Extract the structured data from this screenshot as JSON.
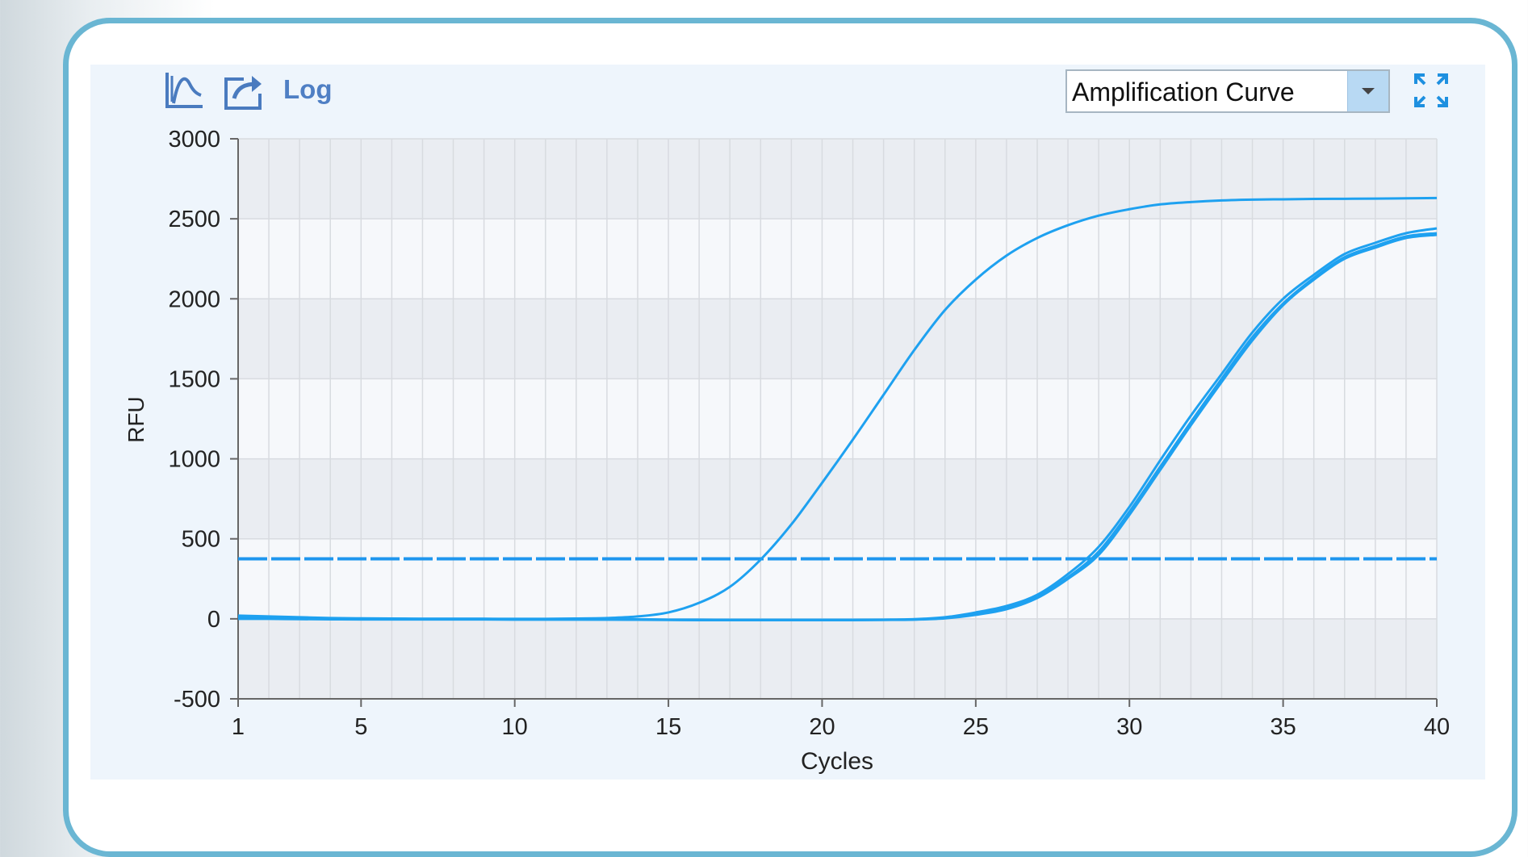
{
  "toolbar": {
    "log_label": "Log",
    "icons": [
      "curve-icon",
      "export-icon",
      "fullscreen-icon"
    ]
  },
  "dropdown": {
    "selected": "Amplification Curve"
  },
  "colors": {
    "curve": "#1ea1f0",
    "threshold": "#1e96ee",
    "axis": "#666666",
    "accent": "#6ab6d3"
  },
  "chart_data": {
    "type": "line",
    "xlabel": "Cycles",
    "ylabel": "RFU",
    "xlim": [
      1,
      40
    ],
    "ylim": [
      -500,
      3000
    ],
    "xticks": [
      1,
      5,
      10,
      15,
      20,
      25,
      30,
      35,
      40
    ],
    "yticks": [
      -500,
      0,
      500,
      1000,
      1500,
      2000,
      2500,
      3000
    ],
    "grid": true,
    "threshold": 375,
    "series": [
      {
        "x": [
          1,
          2,
          3,
          4,
          5,
          6,
          7,
          8,
          9,
          10,
          11,
          12,
          13,
          14,
          15,
          16,
          17,
          18,
          19,
          20,
          21,
          22,
          23,
          24,
          25,
          26,
          27,
          28,
          29,
          30,
          31,
          32,
          33,
          34,
          35,
          36,
          37,
          38,
          39,
          40
        ],
        "values": [
          15,
          10,
          5,
          2,
          0,
          0,
          0,
          0,
          0,
          0,
          0,
          2,
          5,
          15,
          40,
          100,
          200,
          370,
          590,
          850,
          1120,
          1400,
          1680,
          1930,
          2120,
          2270,
          2380,
          2460,
          2520,
          2560,
          2590,
          2605,
          2615,
          2620,
          2622,
          2624,
          2625,
          2626,
          2628,
          2630
        ]
      },
      {
        "x": [
          1,
          2,
          3,
          4,
          5,
          6,
          7,
          8,
          9,
          10,
          11,
          12,
          13,
          14,
          15,
          16,
          17,
          18,
          19,
          20,
          21,
          22,
          23,
          24,
          25,
          26,
          27,
          28,
          29,
          30,
          31,
          32,
          33,
          34,
          35,
          36,
          37,
          38,
          39,
          40
        ],
        "values": [
          10,
          8,
          5,
          0,
          0,
          0,
          0,
          0,
          0,
          -2,
          -2,
          -3,
          -3,
          -3,
          -5,
          -5,
          -6,
          -6,
          -6,
          -6,
          -6,
          -5,
          -2,
          10,
          40,
          80,
          150,
          280,
          450,
          700,
          990,
          1270,
          1530,
          1790,
          2000,
          2150,
          2280,
          2350,
          2410,
          2440
        ]
      },
      {
        "x": [
          1,
          2,
          3,
          4,
          5,
          6,
          7,
          8,
          9,
          10,
          11,
          12,
          13,
          14,
          15,
          16,
          17,
          18,
          19,
          20,
          21,
          22,
          23,
          24,
          25,
          26,
          27,
          28,
          29,
          30,
          31,
          32,
          33,
          34,
          35,
          36,
          37,
          38,
          39,
          40
        ],
        "values": [
          20,
          15,
          10,
          5,
          3,
          2,
          0,
          0,
          0,
          -2,
          -3,
          -3,
          -4,
          -5,
          -6,
          -6,
          -7,
          -7,
          -7,
          -7,
          -7,
          -6,
          -4,
          5,
          30,
          70,
          140,
          260,
          420,
          670,
          950,
          1230,
          1500,
          1760,
          1970,
          2130,
          2260,
          2330,
          2390,
          2410
        ]
      },
      {
        "x": [
          1,
          2,
          3,
          4,
          5,
          6,
          7,
          8,
          9,
          10,
          11,
          12,
          13,
          14,
          15,
          16,
          17,
          18,
          19,
          20,
          21,
          22,
          23,
          24,
          25,
          26,
          27,
          28,
          29,
          30,
          31,
          32,
          33,
          34,
          35,
          36,
          37,
          38,
          39,
          40
        ],
        "values": [
          0,
          0,
          -2,
          -3,
          -4,
          -4,
          -4,
          -4,
          -4,
          -5,
          -5,
          -5,
          -5,
          -6,
          -7,
          -8,
          -8,
          -8,
          -8,
          -8,
          -8,
          -7,
          -5,
          3,
          25,
          60,
          130,
          250,
          400,
          650,
          930,
          1210,
          1480,
          1740,
          1960,
          2120,
          2250,
          2320,
          2380,
          2400
        ]
      }
    ]
  }
}
